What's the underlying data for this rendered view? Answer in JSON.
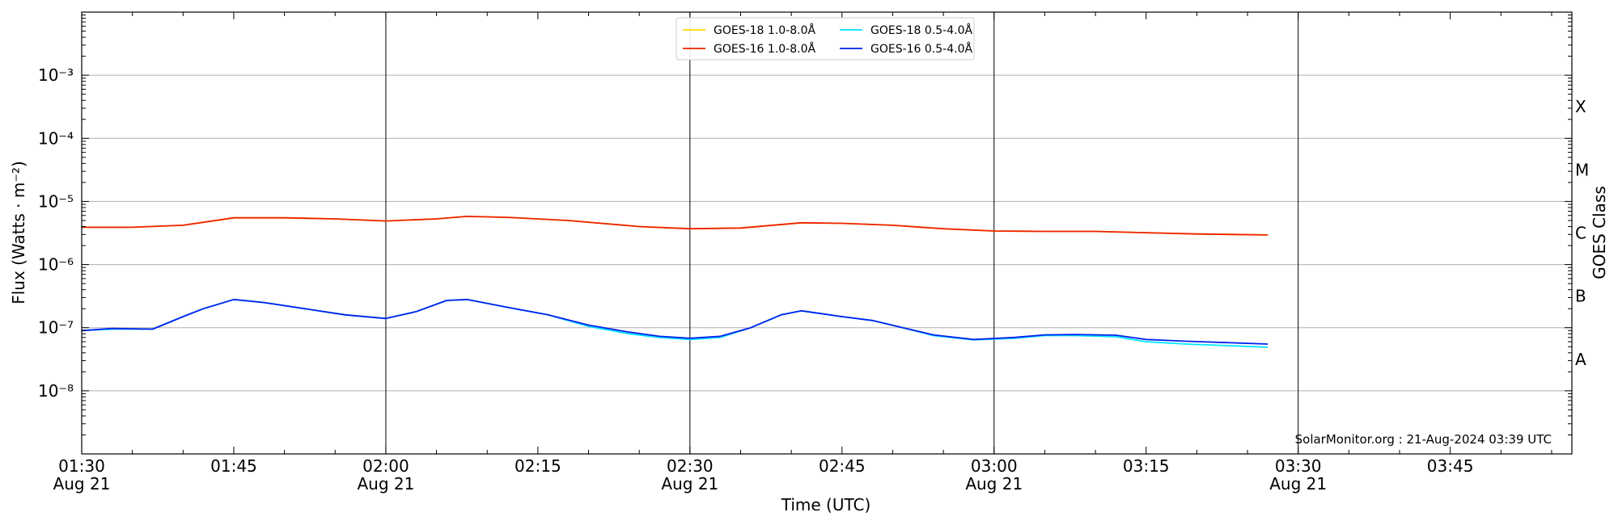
{
  "chart_data": {
    "type": "line",
    "xlabel": "Time (UTC)",
    "ylabel": "Flux (Watts · m⁻²)",
    "ylabel_right": "GOES Class",
    "y_scale": "log",
    "ylim": [
      1e-09,
      0.01
    ],
    "xlim": [
      "01:30",
      "03:57"
    ],
    "x_ticks": [
      {
        "t": "01:30",
        "label": "01:30",
        "date": "Aug 21"
      },
      {
        "t": "01:45",
        "label": "01:45",
        "date": ""
      },
      {
        "t": "02:00",
        "label": "02:00",
        "date": "Aug 21"
      },
      {
        "t": "02:15",
        "label": "02:15",
        "date": ""
      },
      {
        "t": "02:30",
        "label": "02:30",
        "date": "Aug 21"
      },
      {
        "t": "02:45",
        "label": "02:45",
        "date": ""
      },
      {
        "t": "03:00",
        "label": "03:00",
        "date": "Aug 21"
      },
      {
        "t": "03:15",
        "label": "03:15",
        "date": ""
      },
      {
        "t": "03:30",
        "label": "03:30",
        "date": "Aug 21"
      },
      {
        "t": "03:45",
        "label": "03:45",
        "date": ""
      }
    ],
    "y_ticks": [
      {
        "value": 1e-08,
        "label": "10⁻⁸"
      },
      {
        "value": 1e-07,
        "label": "10⁻⁷"
      },
      {
        "value": 1e-06,
        "label": "10⁻⁶"
      },
      {
        "value": 1e-05,
        "label": "10⁻⁵"
      },
      {
        "value": 0.0001,
        "label": "10⁻⁴"
      },
      {
        "value": 0.001,
        "label": "10⁻³"
      }
    ],
    "vertical_lines": [
      "02:00",
      "02:30",
      "03:00",
      "03:30"
    ],
    "goes_classes": [
      {
        "label": "A",
        "flux": 3.16e-08
      },
      {
        "label": "B",
        "flux": 3.16e-07
      },
      {
        "label": "C",
        "flux": 3.16e-06
      },
      {
        "label": "M",
        "flux": 3.16e-05
      },
      {
        "label": "X",
        "flux": 0.000316
      }
    ],
    "grid": true,
    "legend_position": "top-center",
    "series": [
      {
        "name": "GOES-18 1.0-8.0Å",
        "color": "#ffd700",
        "points": [
          [
            "01:30",
            3.9e-06
          ],
          [
            "01:35",
            3.9e-06
          ],
          [
            "01:40",
            4.2e-06
          ],
          [
            "01:45",
            5.5e-06
          ],
          [
            "01:50",
            5.5e-06
          ],
          [
            "01:55",
            5.3e-06
          ],
          [
            "02:00",
            4.9e-06
          ],
          [
            "02:05",
            5.3e-06
          ],
          [
            "02:08",
            5.8e-06
          ],
          [
            "02:12",
            5.6e-06
          ],
          [
            "02:18",
            5e-06
          ],
          [
            "02:25",
            4e-06
          ],
          [
            "02:30",
            3.7e-06
          ],
          [
            "02:35",
            3.8e-06
          ],
          [
            "02:41",
            4.6e-06
          ],
          [
            "02:45",
            4.5e-06
          ],
          [
            "02:50",
            4.2e-06
          ],
          [
            "02:55",
            3.7e-06
          ],
          [
            "03:00",
            3.4e-06
          ],
          [
            "03:05",
            3.35e-06
          ],
          [
            "03:10",
            3.35e-06
          ],
          [
            "03:15",
            3.2e-06
          ],
          [
            "03:20",
            3.05e-06
          ],
          [
            "03:27",
            2.95e-06
          ]
        ]
      },
      {
        "name": "GOES-18 0.5-4.0Å",
        "color": "#00e5ff",
        "points": [
          [
            "01:30",
            9e-08
          ],
          [
            "01:33",
            9.5e-08
          ],
          [
            "01:37",
            9.5e-08
          ],
          [
            "01:40",
            1.5e-07
          ],
          [
            "01:42",
            2e-07
          ],
          [
            "01:45",
            2.8e-07
          ],
          [
            "01:48",
            2.5e-07
          ],
          [
            "01:52",
            2e-07
          ],
          [
            "01:56",
            1.6e-07
          ],
          [
            "02:00",
            1.4e-07
          ],
          [
            "02:03",
            1.8e-07
          ],
          [
            "02:06",
            2.7e-07
          ],
          [
            "02:08",
            2.8e-07
          ],
          [
            "02:12",
            2.1e-07
          ],
          [
            "02:16",
            1.6e-07
          ],
          [
            "02:20",
            1.05e-07
          ],
          [
            "02:24",
            8e-08
          ],
          [
            "02:27",
            7e-08
          ],
          [
            "02:30",
            6.5e-08
          ],
          [
            "02:33",
            7e-08
          ],
          [
            "02:36",
            1e-07
          ],
          [
            "02:39",
            1.6e-07
          ],
          [
            "02:41",
            1.85e-07
          ],
          [
            "02:45",
            1.5e-07
          ],
          [
            "02:48",
            1.3e-07
          ],
          [
            "02:51",
            1e-07
          ],
          [
            "02:54",
            7.5e-08
          ],
          [
            "02:58",
            6.4e-08
          ],
          [
            "03:02",
            6.8e-08
          ],
          [
            "03:05",
            7.5e-08
          ],
          [
            "03:08",
            7.5e-08
          ],
          [
            "03:12",
            7.2e-08
          ],
          [
            "03:15",
            6e-08
          ],
          [
            "03:19",
            5.5e-08
          ],
          [
            "03:23",
            5.2e-08
          ],
          [
            "03:27",
            4.9e-08
          ]
        ]
      },
      {
        "name": "GOES-16 1.0-8.0Å",
        "color": "#ee2200",
        "points": [
          [
            "01:30",
            3.9e-06
          ],
          [
            "01:35",
            3.9e-06
          ],
          [
            "01:40",
            4.2e-06
          ],
          [
            "01:45",
            5.5e-06
          ],
          [
            "01:50",
            5.5e-06
          ],
          [
            "01:55",
            5.3e-06
          ],
          [
            "02:00",
            4.9e-06
          ],
          [
            "02:05",
            5.3e-06
          ],
          [
            "02:08",
            5.8e-06
          ],
          [
            "02:12",
            5.6e-06
          ],
          [
            "02:18",
            5e-06
          ],
          [
            "02:25",
            4e-06
          ],
          [
            "02:30",
            3.7e-06
          ],
          [
            "02:35",
            3.8e-06
          ],
          [
            "02:41",
            4.6e-06
          ],
          [
            "02:45",
            4.5e-06
          ],
          [
            "02:50",
            4.2e-06
          ],
          [
            "02:55",
            3.7e-06
          ],
          [
            "03:00",
            3.4e-06
          ],
          [
            "03:05",
            3.35e-06
          ],
          [
            "03:10",
            3.35e-06
          ],
          [
            "03:15",
            3.2e-06
          ],
          [
            "03:20",
            3.05e-06
          ],
          [
            "03:27",
            2.95e-06
          ]
        ]
      },
      {
        "name": "GOES-16 0.5-4.0Å",
        "color": "#0022ee",
        "points": [
          [
            "01:30",
            9e-08
          ],
          [
            "01:33",
            9.7e-08
          ],
          [
            "01:37",
            9.5e-08
          ],
          [
            "01:40",
            1.5e-07
          ],
          [
            "01:42",
            2e-07
          ],
          [
            "01:45",
            2.8e-07
          ],
          [
            "01:48",
            2.5e-07
          ],
          [
            "01:52",
            2e-07
          ],
          [
            "01:56",
            1.6e-07
          ],
          [
            "02:00",
            1.4e-07
          ],
          [
            "02:03",
            1.8e-07
          ],
          [
            "02:06",
            2.7e-07
          ],
          [
            "02:08",
            2.8e-07
          ],
          [
            "02:12",
            2.1e-07
          ],
          [
            "02:16",
            1.6e-07
          ],
          [
            "02:20",
            1.1e-07
          ],
          [
            "02:24",
            8.5e-08
          ],
          [
            "02:27",
            7.3e-08
          ],
          [
            "02:30",
            6.8e-08
          ],
          [
            "02:33",
            7.3e-08
          ],
          [
            "02:36",
            1e-07
          ],
          [
            "02:39",
            1.6e-07
          ],
          [
            "02:41",
            1.85e-07
          ],
          [
            "02:45",
            1.5e-07
          ],
          [
            "02:48",
            1.3e-07
          ],
          [
            "02:51",
            1e-07
          ],
          [
            "02:54",
            7.7e-08
          ],
          [
            "02:58",
            6.5e-08
          ],
          [
            "03:02",
            7e-08
          ],
          [
            "03:05",
            7.7e-08
          ],
          [
            "03:08",
            7.8e-08
          ],
          [
            "03:12",
            7.6e-08
          ],
          [
            "03:15",
            6.5e-08
          ],
          [
            "03:19",
            6.1e-08
          ],
          [
            "03:23",
            5.8e-08
          ],
          [
            "03:27",
            5.5e-08
          ]
        ]
      }
    ],
    "legend_entries": [
      {
        "name": "GOES-18 1.0-8.0Å",
        "color": "#ffd700"
      },
      {
        "name": "GOES-16 1.0-8.0Å",
        "color": "#ee2200"
      },
      {
        "name": "GOES-18 0.5-4.0Å",
        "color": "#00e5ff"
      },
      {
        "name": "GOES-16 0.5-4.0Å",
        "color": "#0022ee"
      }
    ],
    "annotation": "SolarMonitor.org : 21-Aug-2024 03:39 UTC"
  }
}
